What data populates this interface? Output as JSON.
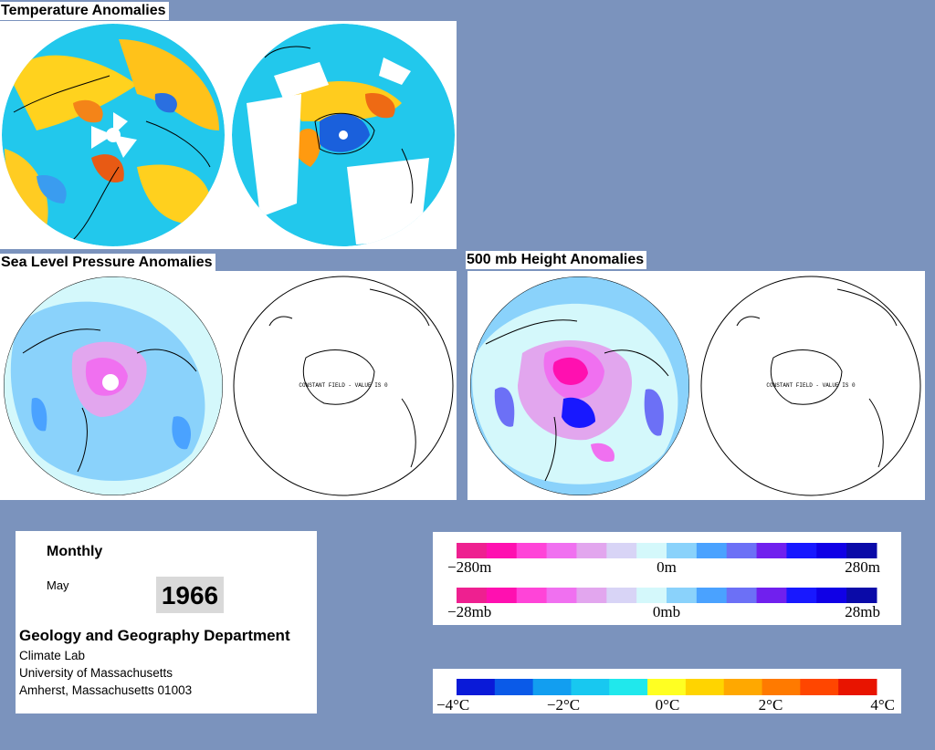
{
  "titles": {
    "temperature": "Temperature Anomalies",
    "slp": "Sea Level Pressure Anomalies",
    "height": "500 mb Height Anomalies"
  },
  "maps": {
    "constant_field_note": "CONSTANT FIELD - VALUE IS 0"
  },
  "info": {
    "period": "Monthly",
    "month": "May",
    "year": "1966",
    "department": "Geology and Geography Department",
    "lab": "Climate Lab",
    "university": "University of Massachusetts",
    "address": "Amherst, Massachusetts 01003"
  },
  "legends": {
    "height_labels": [
      "−280m",
      "0m",
      "280m"
    ],
    "pressure_labels": [
      "−28mb",
      "0mb",
      "28mb"
    ],
    "temperature_labels": [
      "−4°C",
      "−2°C",
      "0°C",
      "2°C",
      "4°C"
    ],
    "anomaly_colors": [
      "#ee2090",
      "#ff10b0",
      "#ff44d8",
      "#f070f0",
      "#e2a6ee",
      "#d8d4f6",
      "#d4f8fb",
      "#8ad2fb",
      "#4aa2ff",
      "#6c70f6",
      "#7020ee",
      "#1818ff",
      "#1000e6",
      "#0a0aa8"
    ],
    "temperature_colors": [
      "#0a1ad8",
      "#0a5ae8",
      "#129ef0",
      "#18c8f0",
      "#20e8ec",
      "#ffff22",
      "#ffd400",
      "#ffa800",
      "#ff7a00",
      "#ff4600",
      "#e81400"
    ]
  }
}
